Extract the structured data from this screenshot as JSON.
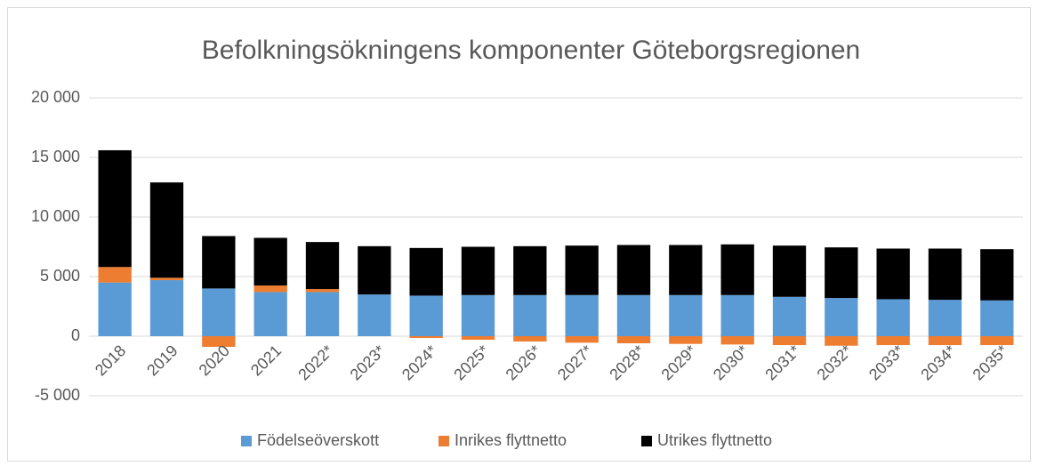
{
  "chart_data": {
    "type": "bar",
    "stacked": true,
    "title": "Befolkningsökningens komponenter Göteborgsregionen",
    "categories": [
      "2018",
      "2019",
      "2020",
      "2021",
      "2022*",
      "2023*",
      "2024*",
      "2025*",
      "2026*",
      "2027*",
      "2028*",
      "2029*",
      "2030*",
      "2031*",
      "2032*",
      "2033*",
      "2034*",
      "2035*"
    ],
    "series": [
      {
        "name": "Födelseöverskott",
        "color": "#5b9bd5",
        "values": [
          4500,
          4700,
          4000,
          3700,
          3700,
          3500,
          3400,
          3450,
          3450,
          3450,
          3450,
          3450,
          3450,
          3300,
          3200,
          3100,
          3050,
          3000
        ]
      },
      {
        "name": "Inrikes flyttnetto",
        "color": "#ed7d31",
        "values": [
          1300,
          200,
          -900,
          550,
          250,
          0,
          -150,
          -300,
          -450,
          -550,
          -600,
          -650,
          -700,
          -750,
          -800,
          -750,
          -750,
          -750
        ]
      },
      {
        "name": "Utrikes flyttnetto",
        "color": "#000000",
        "values": [
          9800,
          8000,
          4400,
          4000,
          3950,
          4050,
          4000,
          4050,
          4100,
          4150,
          4200,
          4200,
          4250,
          4300,
          4250,
          4250,
          4300,
          4300
        ]
      }
    ],
    "ylim": [
      -5000,
      20000
    ],
    "yticks": [
      {
        "value": -5000,
        "label": "-5 000"
      },
      0,
      {
        "value": 5000,
        "label": "5 000"
      },
      {
        "value": 10000,
        "label": "10 000"
      },
      {
        "value": 15000,
        "label": "15 000"
      },
      {
        "value": 20000,
        "label": "20 000"
      }
    ],
    "grid": true,
    "legend": "bottom"
  }
}
